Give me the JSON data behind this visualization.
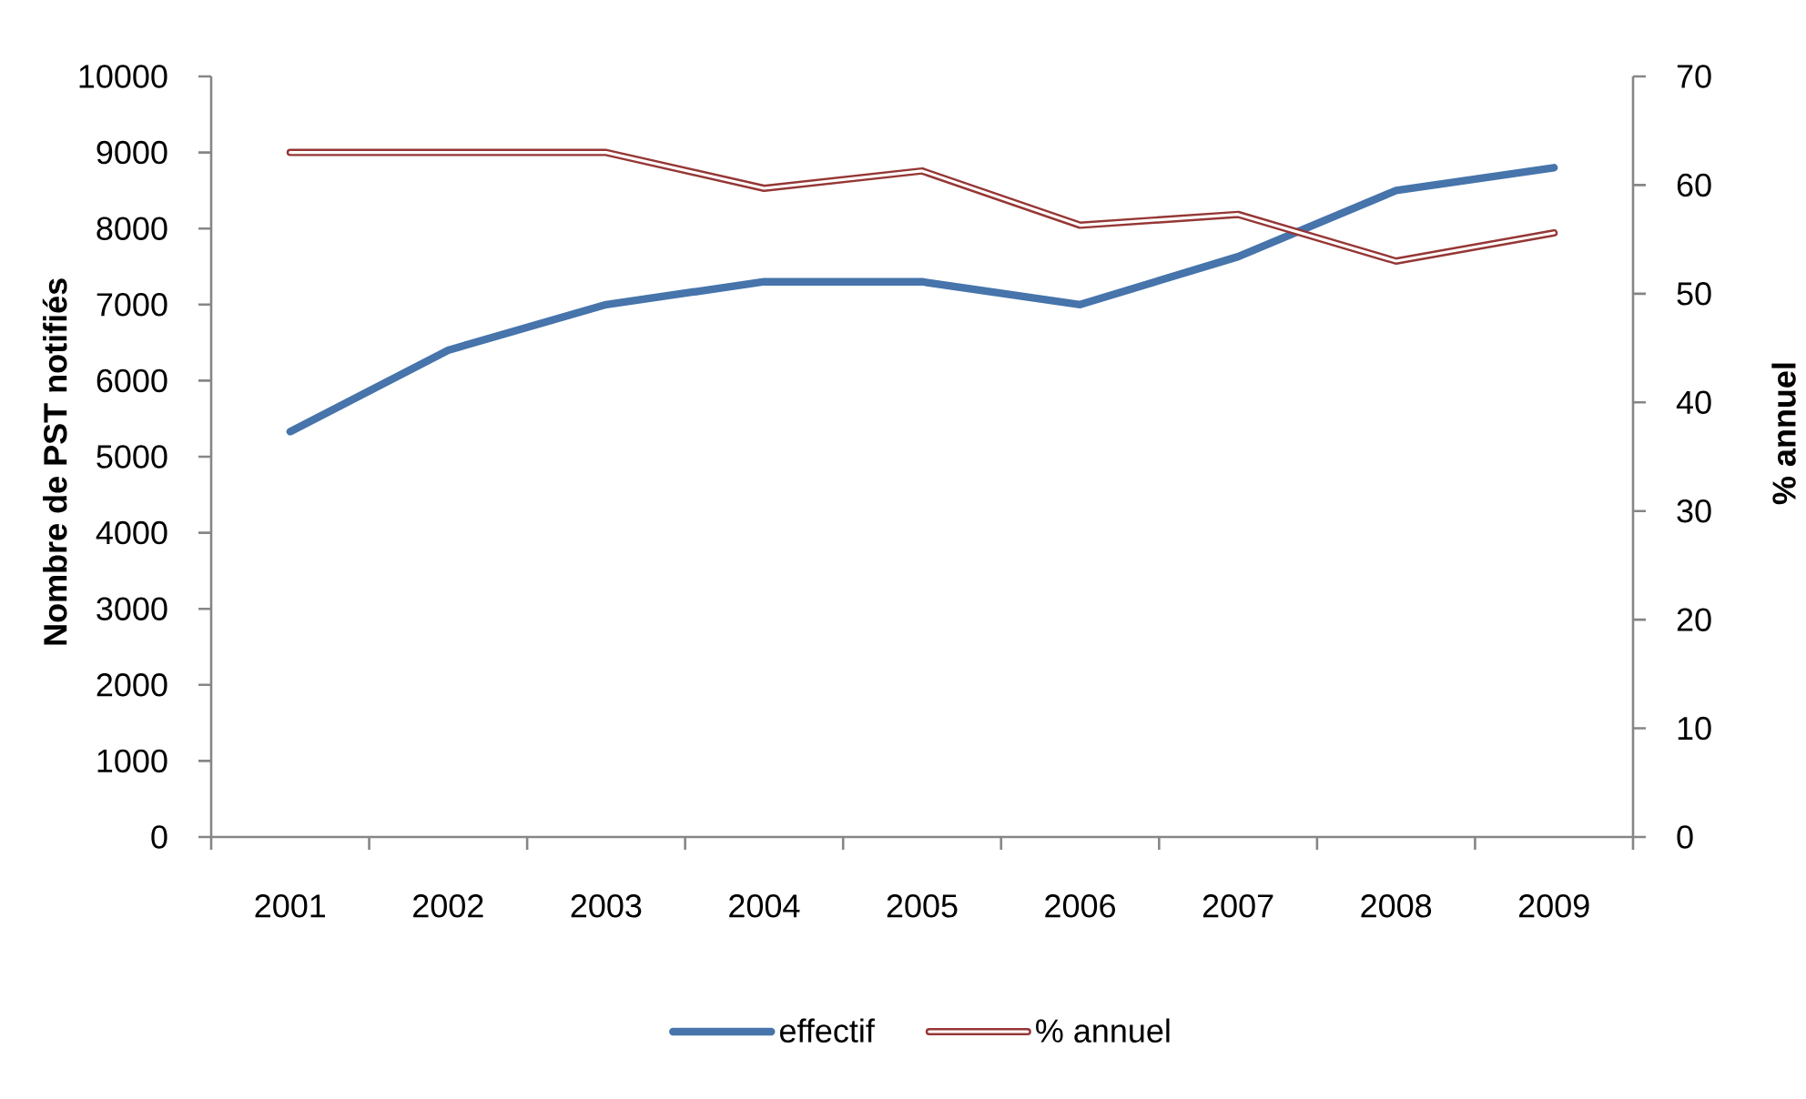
{
  "chart_data": {
    "type": "line",
    "categories": [
      "2001",
      "2002",
      "2003",
      "2004",
      "2005",
      "2006",
      "2007",
      "2008",
      "2009"
    ],
    "ylabel": "Nombre de PST notifiés",
    "y2label": "% annuel",
    "ylim": [
      0,
      10000
    ],
    "yticks": [
      0,
      1000,
      2000,
      3000,
      4000,
      5000,
      6000,
      7000,
      8000,
      9000,
      10000
    ],
    "y2lim": [
      0,
      70
    ],
    "y2ticks": [
      0,
      10,
      20,
      30,
      40,
      50,
      60,
      70
    ],
    "series": [
      {
        "name": "effectif",
        "color": "#4674ab",
        "values": [
          5330,
          6400,
          7000,
          7300,
          7300,
          7000,
          7630,
          8500,
          8800
        ]
      },
      {
        "name": "% annuel",
        "color": "#953735",
        "axis": "y2",
        "values": [
          63.0,
          63.0,
          63.0,
          59.7,
          61.3,
          56.3,
          57.3,
          53.0,
          55.6
        ]
      }
    ],
    "line_style": "solid",
    "legend": "bottom"
  }
}
